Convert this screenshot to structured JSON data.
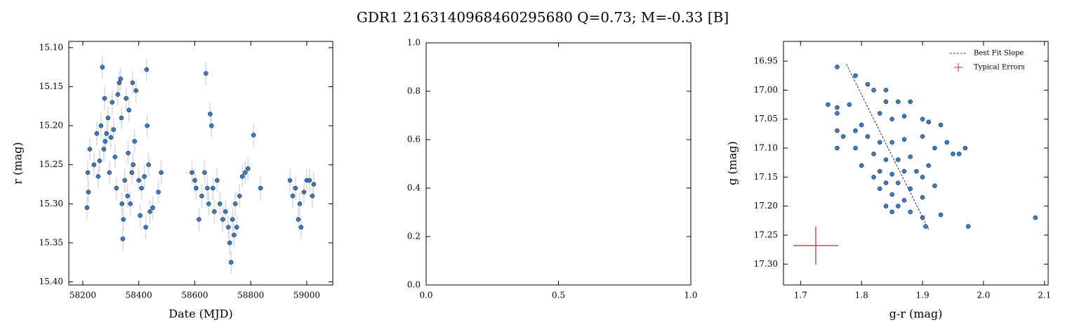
{
  "title": "GDR1 2163140968460295680  Q=0.73; M=-0.33 [B]",
  "chart_data": [
    {
      "type": "scatter",
      "xlabel": "Date (MJD)",
      "ylabel": "r (mag)",
      "xlim": [
        58150,
        59093
      ],
      "ylim": [
        15.092,
        15.404
      ],
      "invert_y": true,
      "xticks": [
        58200,
        58400,
        58600,
        58800,
        59000
      ],
      "yticks": [
        {
          "value": 15.1,
          "label": "15.10"
        },
        15.15,
        {
          "value": 15.2,
          "label": "15.20"
        },
        15.25,
        {
          "value": 15.3,
          "label": "15.30"
        },
        15.35,
        {
          "value": 15.4,
          "label": "15.40"
        }
      ],
      "color": "#3a7bc8",
      "error_color": "#d9d9d9",
      "yerr": 0.015,
      "x": [
        58215,
        58218,
        58220,
        58225,
        58240,
        58250,
        58255,
        58260,
        58265,
        58270,
        58275,
        58278,
        58280,
        58285,
        58290,
        58295,
        58300,
        58305,
        58310,
        58315,
        58320,
        58325,
        58330,
        58335,
        58338,
        58340,
        58343,
        58345,
        58350,
        58355,
        58360,
        58362,
        58365,
        58370,
        58375,
        58378,
        58380,
        58385,
        58390,
        58400,
        58405,
        58410,
        58420,
        58425,
        58428,
        58430,
        58435,
        58440,
        58450,
        58470,
        58480,
        58590,
        58600,
        58605,
        58615,
        58625,
        58635,
        58640,
        58645,
        58650,
        58655,
        58660,
        58665,
        58670,
        58680,
        58690,
        58700,
        58710,
        58720,
        58725,
        58730,
        58735,
        58740,
        58745,
        58750,
        58760,
        58770,
        58780,
        58790,
        58810,
        58835,
        58940,
        58950,
        58960,
        58970,
        58975,
        58980,
        58990,
        59000,
        59010,
        59020,
        59025
      ],
      "y": [
        15.305,
        15.26,
        15.285,
        15.23,
        15.25,
        15.21,
        15.265,
        15.245,
        15.2,
        15.125,
        15.23,
        15.165,
        15.22,
        15.21,
        15.19,
        15.26,
        15.215,
        15.17,
        15.205,
        15.24,
        15.28,
        15.16,
        15.145,
        15.14,
        15.19,
        15.3,
        15.345,
        15.32,
        15.27,
        15.165,
        15.29,
        15.235,
        15.18,
        15.3,
        15.26,
        15.145,
        15.25,
        15.22,
        15.155,
        15.27,
        15.315,
        15.28,
        15.265,
        15.33,
        15.128,
        15.2,
        15.25,
        15.31,
        15.305,
        15.285,
        15.26,
        15.26,
        15.27,
        15.28,
        15.32,
        15.29,
        15.26,
        15.133,
        15.28,
        15.3,
        15.185,
        15.2,
        15.28,
        15.31,
        15.27,
        15.3,
        15.32,
        15.31,
        15.33,
        15.35,
        15.375,
        15.32,
        15.34,
        15.3,
        15.33,
        15.29,
        15.265,
        15.26,
        15.255,
        15.212,
        15.28,
        15.27,
        15.29,
        15.28,
        15.32,
        15.3,
        15.33,
        15.285,
        15.27,
        15.27,
        15.29,
        15.275
      ]
    },
    {
      "type": "axes",
      "xlim": [
        0,
        1
      ],
      "ylim": [
        0,
        1
      ],
      "xticks": [
        {
          "value": 0,
          "label": "0.0"
        },
        0.5,
        {
          "value": 1,
          "label": "1.0"
        }
      ],
      "yticks": [
        {
          "value": 0,
          "label": "0.0"
        },
        0.2,
        0.4,
        0.6,
        0.8,
        {
          "value": 1,
          "label": "1.0"
        }
      ]
    },
    {
      "type": "scatter",
      "xlabel": "g-r (mag)",
      "ylabel": "g (mag)",
      "xlim": [
        1.672,
        2.106
      ],
      "ylim": [
        16.916,
        17.336
      ],
      "invert_y": true,
      "xticks": [
        1.7,
        1.8,
        1.9,
        {
          "value": 2.0,
          "label": "2.0"
        },
        2.1
      ],
      "yticks": [
        16.95,
        {
          "value": 17.0,
          "label": "17.00"
        },
        17.05,
        {
          "value": 17.1,
          "label": "17.10"
        },
        17.15,
        {
          "value": 17.2,
          "label": "17.20"
        },
        17.25,
        {
          "value": 17.3,
          "label": "17.30"
        }
      ],
      "color": "#3a7bc8",
      "legend": "upper right",
      "x": [
        1.76,
        1.79,
        1.78,
        1.76,
        1.76,
        1.745,
        1.81,
        1.82,
        1.84,
        1.84,
        1.86,
        1.88,
        1.83,
        1.85,
        1.87,
        1.9,
        1.91,
        1.93,
        1.8,
        1.79,
        1.76,
        1.77,
        1.81,
        1.83,
        1.85,
        1.87,
        1.9,
        1.94,
        1.97,
        1.96,
        1.92,
        1.76,
        1.79,
        1.82,
        1.84,
        1.86,
        1.88,
        1.91,
        1.8,
        1.83,
        1.85,
        1.87,
        1.89,
        1.9,
        1.82,
        1.84,
        1.86,
        1.88,
        1.92,
        1.83,
        1.85,
        1.87,
        1.9,
        1.84,
        1.86,
        1.88,
        1.85,
        1.9,
        1.93,
        1.905,
        1.975,
        2.085,
        1.95
      ],
      "y": [
        16.96,
        16.975,
        17.025,
        17.03,
        17.04,
        17.025,
        16.99,
        17.0,
        17.0,
        17.02,
        17.02,
        17.02,
        17.04,
        17.05,
        17.045,
        17.05,
        17.055,
        17.06,
        17.06,
        17.07,
        17.07,
        17.08,
        17.08,
        17.09,
        17.09,
        17.085,
        17.08,
        17.09,
        17.1,
        17.11,
        17.1,
        17.1,
        17.1,
        17.11,
        17.12,
        17.12,
        17.115,
        17.13,
        17.13,
        17.14,
        17.145,
        17.14,
        17.14,
        17.15,
        17.15,
        17.16,
        17.16,
        17.17,
        17.165,
        17.17,
        17.18,
        17.19,
        17.185,
        17.2,
        17.2,
        17.21,
        17.21,
        17.22,
        17.215,
        17.235,
        17.235,
        17.22,
        17.11
      ],
      "fit": {
        "name": "Best Fit Slope",
        "color": "#000000",
        "x": [
          1.775,
          1.91
        ],
        "y": [
          16.955,
          17.24
        ]
      },
      "errors": {
        "name": "Typical Errors",
        "color": "#c44e52",
        "x": 1.725,
        "y": 17.268,
        "xerr": 0.037,
        "yerr": 0.033
      }
    }
  ]
}
